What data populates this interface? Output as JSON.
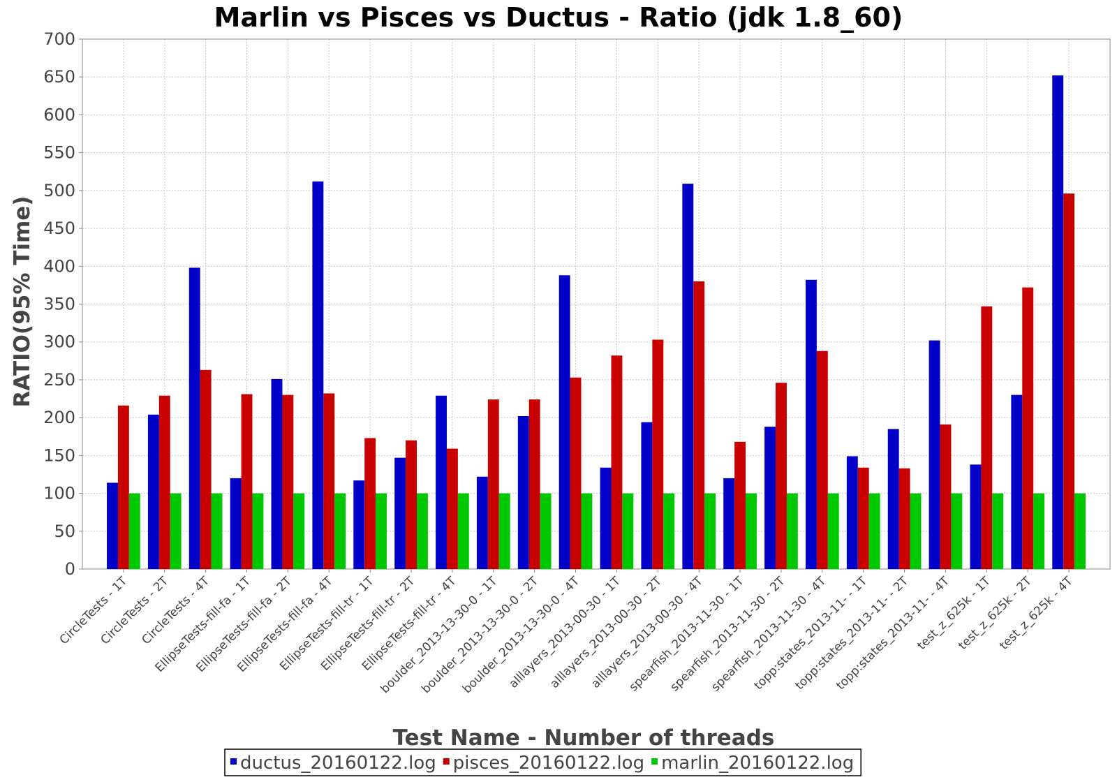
{
  "chart_data": {
    "type": "bar",
    "title": "Marlin vs Pisces vs Ductus - Ratio (jdk 1.8_60)",
    "xlabel": "Test Name - Number of threads",
    "ylabel": "RATIO(95% Time)",
    "ylim": [
      0,
      700
    ],
    "yticks": [
      0,
      50,
      100,
      150,
      200,
      250,
      300,
      350,
      400,
      450,
      500,
      550,
      600,
      650,
      700
    ],
    "grid": true,
    "legend_position": "bottom",
    "categories": [
      "CircleTests - 1T",
      "CircleTests - 2T",
      "CircleTests - 4T",
      "EllipseTests-fill-fa - 1T",
      "EllipseTests-fill-fa - 2T",
      "EllipseTests-fill-fa - 4T",
      "EllipseTests-fill-tr - 1T",
      "EllipseTests-fill-tr - 2T",
      "EllipseTests-fill-tr - 4T",
      "boulder_2013-13-30-0 - 1T",
      "boulder_2013-13-30-0 - 2T",
      "boulder_2013-13-30-0 - 4T",
      "alllayers_2013-00-30 - 1T",
      "alllayers_2013-00-30 - 2T",
      "alllayers_2013-00-30 - 4T",
      "spearfish_2013-11-30 - 1T",
      "spearfish_2013-11-30 - 2T",
      "spearfish_2013-11-30 - 4T",
      "topp:states_2013-11- - 1T",
      "topp:states_2013-11- - 2T",
      "topp:states_2013-11- - 4T",
      "test_z_625k - 1T",
      "test_z_625k - 2T",
      "test_z_625k - 4T"
    ],
    "series": [
      {
        "name": "ductus_20160122.log",
        "color": "#0000c8",
        "values": [
          114,
          204,
          398,
          120,
          251,
          512,
          117,
          147,
          229,
          122,
          202,
          388,
          134,
          194,
          509,
          120,
          188,
          382,
          149,
          185,
          302,
          138,
          230,
          652
        ]
      },
      {
        "name": "pisces_20160122.log",
        "color": "#c80000",
        "values": [
          216,
          229,
          263,
          231,
          230,
          232,
          173,
          170,
          159,
          224,
          224,
          253,
          282,
          303,
          380,
          168,
          246,
          288,
          134,
          133,
          191,
          347,
          372,
          496
        ]
      },
      {
        "name": "marlin_20160122.log",
        "color": "#00c800",
        "values": [
          100,
          100,
          100,
          100,
          100,
          100,
          100,
          100,
          100,
          100,
          100,
          100,
          100,
          100,
          100,
          100,
          100,
          100,
          100,
          100,
          100,
          100,
          100,
          100
        ]
      }
    ]
  }
}
